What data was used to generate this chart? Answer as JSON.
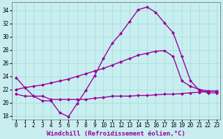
{
  "xlabel": "Windchill (Refroidissement éolien,°C)",
  "bg_color": "#c8eef0",
  "line_color": "#990099",
  "grid_color": "#aadddd",
  "xlim": [
    -0.5,
    23.4
  ],
  "ylim": [
    17.5,
    35.2
  ],
  "yticks": [
    18,
    20,
    22,
    24,
    26,
    28,
    30,
    32,
    34
  ],
  "xticks": [
    0,
    1,
    2,
    3,
    4,
    5,
    6,
    7,
    8,
    9,
    10,
    11,
    12,
    13,
    14,
    15,
    16,
    17,
    18,
    19,
    20,
    21,
    22,
    23
  ],
  "line1_x": [
    0,
    1,
    2,
    3,
    4,
    5,
    6,
    7,
    8,
    9,
    10,
    11,
    12,
    13,
    14,
    15,
    16,
    17,
    18,
    19,
    20,
    21,
    22,
    23
  ],
  "line1_y": [
    23.8,
    22.3,
    21.0,
    20.3,
    20.3,
    18.5,
    17.9,
    19.9,
    21.9,
    24.1,
    26.7,
    29.0,
    30.5,
    32.3,
    34.1,
    34.5,
    33.7,
    32.1,
    30.6,
    27.0,
    23.3,
    21.9,
    21.5,
    21.5
  ],
  "line2_x": [
    0,
    1,
    2,
    3,
    4,
    5,
    6,
    7,
    8,
    9,
    10,
    11,
    12,
    13,
    14,
    15,
    16,
    17,
    18,
    19,
    20,
    21,
    22,
    23
  ],
  "line2_y": [
    22.0,
    22.3,
    22.5,
    22.7,
    23.0,
    23.3,
    23.6,
    24.0,
    24.4,
    24.8,
    25.2,
    25.7,
    26.2,
    26.7,
    27.2,
    27.5,
    27.8,
    27.9,
    27.0,
    23.3,
    22.5,
    22.0,
    21.8,
    21.7
  ],
  "line3_x": [
    0,
    1,
    2,
    3,
    4,
    5,
    6,
    7,
    8,
    9,
    10,
    11,
    12,
    13,
    14,
    15,
    16,
    17,
    18,
    19,
    20,
    21,
    22,
    23
  ],
  "line3_y": [
    21.3,
    21.0,
    21.0,
    21.0,
    20.5,
    20.5,
    20.5,
    20.5,
    20.5,
    20.7,
    20.8,
    21.0,
    21.0,
    21.0,
    21.1,
    21.1,
    21.2,
    21.3,
    21.3,
    21.4,
    21.5,
    21.6,
    21.7,
    21.8
  ],
  "line_width": 1.0,
  "marker": "D",
  "marker_size": 2.0,
  "tick_fontsize": 5.5,
  "xlabel_fontsize": 6.5
}
